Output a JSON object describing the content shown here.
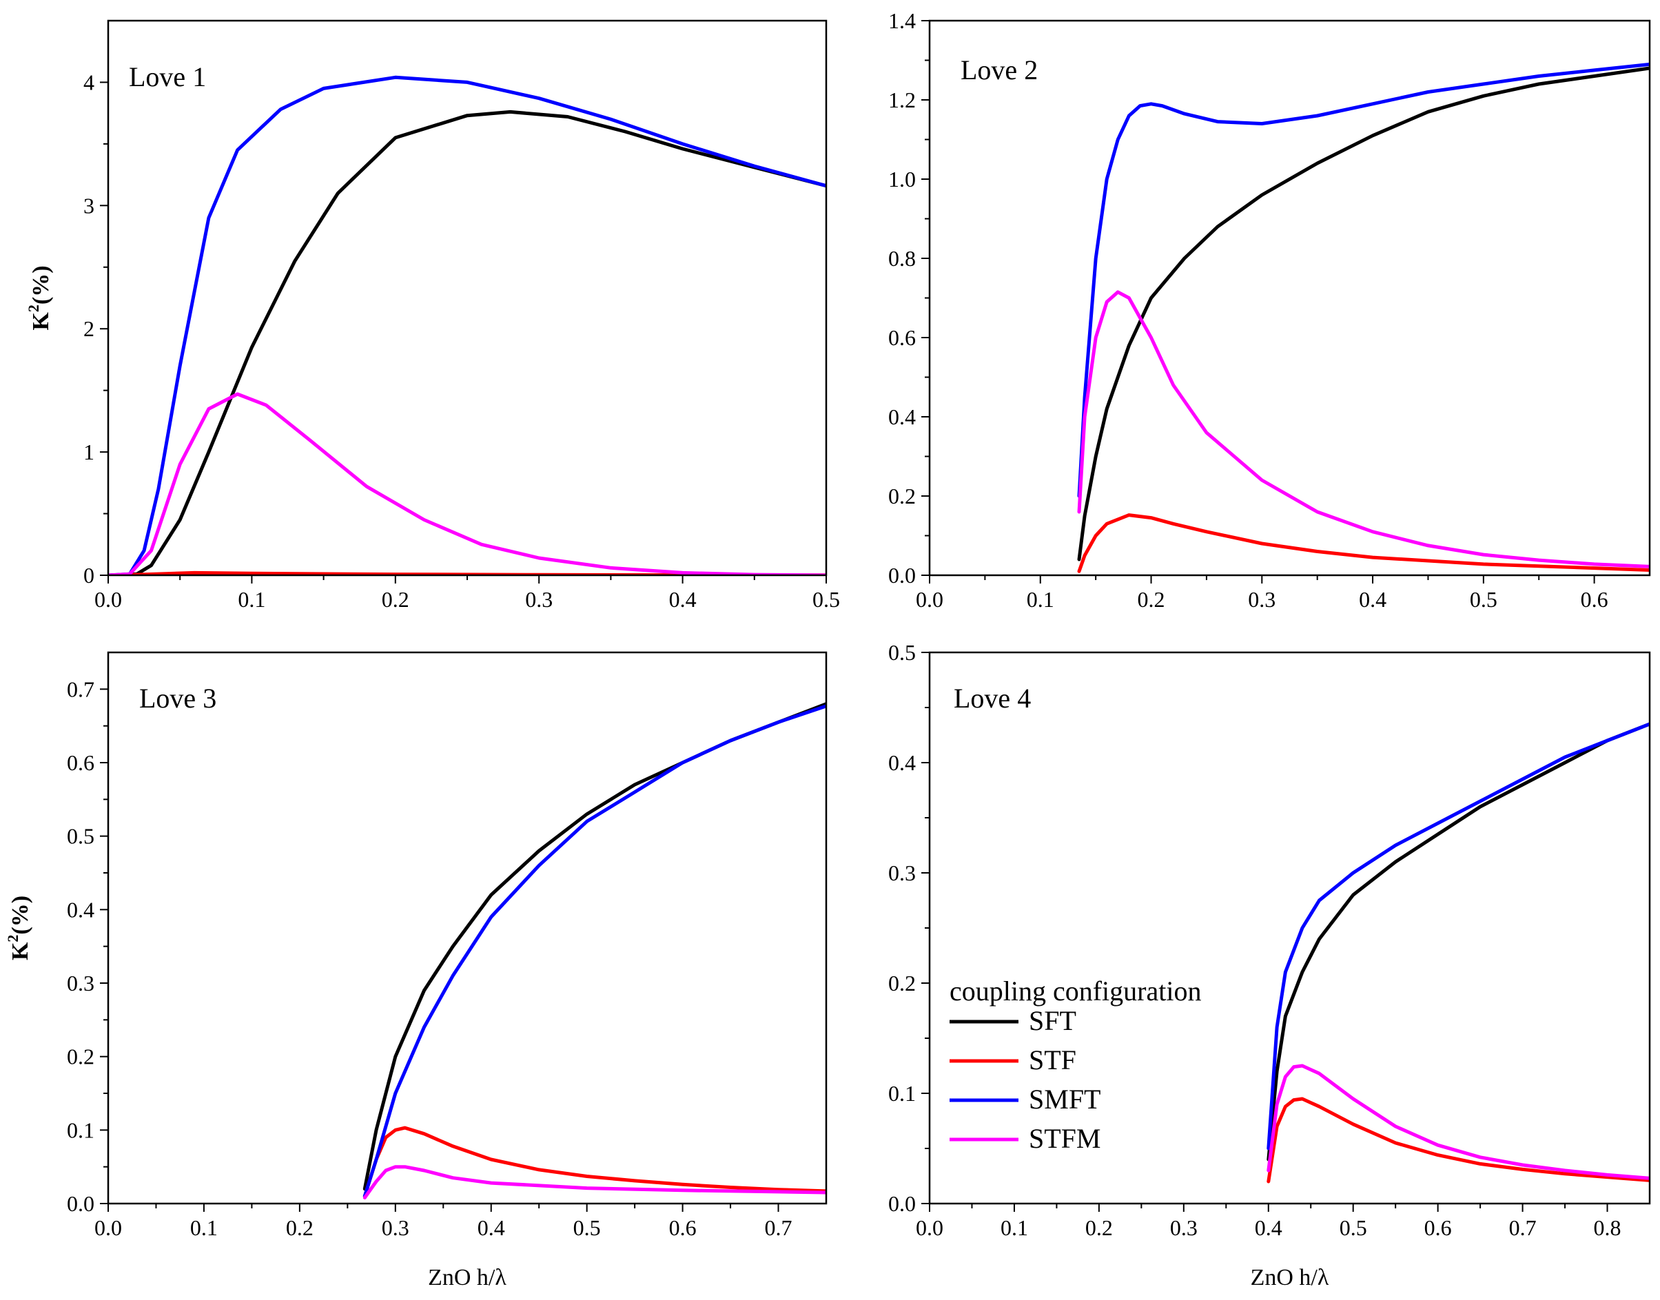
{
  "colors": {
    "SFT": "#000000",
    "STF": "#ff0000",
    "SMFT": "#0000ff",
    "STFM": "#ff00ff"
  },
  "legend": {
    "title": "coupling configuration",
    "entries": [
      {
        "name": "SFT",
        "color": "#000000"
      },
      {
        "name": "STF",
        "color": "#ff0000"
      },
      {
        "name": "SMFT",
        "color": "#0000ff"
      },
      {
        "name": "STFM",
        "color": "#ff00ff"
      }
    ]
  },
  "chart_data": [
    {
      "type": "line",
      "title": "Love 1",
      "xlabel": "",
      "ylabel_base": "K",
      "ylabel_sup": "2",
      "ylabel_rest": "(%)",
      "xlim": [
        0,
        0.5
      ],
      "ylim": [
        0,
        4.5
      ],
      "xticks": [
        "0.0",
        "0.1",
        "0.2",
        "0.3",
        "0.4",
        "0.5"
      ],
      "yticks": [
        "0",
        "1",
        "2",
        "3",
        "4"
      ],
      "series": [
        {
          "name": "SFT",
          "x": [
            0,
            0.02,
            0.03,
            0.05,
            0.07,
            0.1,
            0.13,
            0.16,
            0.2,
            0.25,
            0.28,
            0.32,
            0.36,
            0.4,
            0.45,
            0.5
          ],
          "y": [
            0,
            0.01,
            0.08,
            0.45,
            1.0,
            1.85,
            2.55,
            3.1,
            3.55,
            3.73,
            3.76,
            3.72,
            3.6,
            3.46,
            3.31,
            3.16
          ]
        },
        {
          "name": "STF",
          "x": [
            0,
            0.02,
            0.06,
            0.1,
            0.2,
            0.3,
            0.4,
            0.5
          ],
          "y": [
            0,
            0.005,
            0.02,
            0.015,
            0.008,
            0.004,
            0.002,
            0.001
          ]
        },
        {
          "name": "SMFT",
          "x": [
            0,
            0.015,
            0.025,
            0.035,
            0.05,
            0.07,
            0.09,
            0.12,
            0.15,
            0.2,
            0.25,
            0.3,
            0.35,
            0.4,
            0.45,
            0.5
          ],
          "y": [
            0,
            0.01,
            0.2,
            0.7,
            1.7,
            2.9,
            3.45,
            3.78,
            3.95,
            4.04,
            4.0,
            3.87,
            3.7,
            3.5,
            3.32,
            3.16
          ]
        },
        {
          "name": "STFM",
          "x": [
            0,
            0.015,
            0.03,
            0.05,
            0.07,
            0.09,
            0.11,
            0.14,
            0.18,
            0.22,
            0.26,
            0.3,
            0.35,
            0.4,
            0.45,
            0.5
          ],
          "y": [
            0,
            0.01,
            0.2,
            0.9,
            1.35,
            1.47,
            1.38,
            1.1,
            0.72,
            0.45,
            0.25,
            0.14,
            0.06,
            0.02,
            0.005,
            0
          ]
        }
      ]
    },
    {
      "type": "line",
      "title": "Love 2",
      "xlabel": "",
      "ylabel_base": "",
      "ylabel_sup": "",
      "ylabel_rest": "",
      "xlim": [
        0,
        0.65
      ],
      "ylim": [
        0,
        1.4
      ],
      "xticks": [
        "0.0",
        "0.1",
        "0.2",
        "0.3",
        "0.4",
        "0.5",
        "0.6"
      ],
      "yticks": [
        "0.0",
        "0.2",
        "0.4",
        "0.6",
        "0.8",
        "1.0",
        "1.2",
        "1.4"
      ],
      "series": [
        {
          "name": "SFT",
          "x": [
            0.135,
            0.14,
            0.15,
            0.16,
            0.18,
            0.2,
            0.23,
            0.26,
            0.3,
            0.35,
            0.4,
            0.45,
            0.5,
            0.55,
            0.6,
            0.65
          ],
          "y": [
            0.04,
            0.15,
            0.3,
            0.42,
            0.58,
            0.7,
            0.8,
            0.88,
            0.96,
            1.04,
            1.11,
            1.17,
            1.21,
            1.24,
            1.26,
            1.28
          ]
        },
        {
          "name": "STF",
          "x": [
            0.135,
            0.14,
            0.15,
            0.16,
            0.18,
            0.2,
            0.22,
            0.25,
            0.3,
            0.35,
            0.4,
            0.5,
            0.6,
            0.65
          ],
          "y": [
            0.01,
            0.05,
            0.1,
            0.13,
            0.152,
            0.145,
            0.13,
            0.11,
            0.08,
            0.06,
            0.045,
            0.028,
            0.018,
            0.013
          ]
        },
        {
          "name": "SMFT",
          "x": [
            0.135,
            0.14,
            0.15,
            0.16,
            0.17,
            0.18,
            0.19,
            0.2,
            0.21,
            0.23,
            0.26,
            0.3,
            0.35,
            0.4,
            0.45,
            0.5,
            0.55,
            0.6,
            0.65
          ],
          "y": [
            0.2,
            0.45,
            0.8,
            1.0,
            1.1,
            1.16,
            1.185,
            1.19,
            1.185,
            1.165,
            1.145,
            1.14,
            1.16,
            1.19,
            1.22,
            1.24,
            1.26,
            1.275,
            1.29
          ]
        },
        {
          "name": "STFM",
          "x": [
            0.135,
            0.14,
            0.15,
            0.16,
            0.17,
            0.18,
            0.2,
            0.22,
            0.25,
            0.3,
            0.35,
            0.4,
            0.45,
            0.5,
            0.55,
            0.6,
            0.65
          ],
          "y": [
            0.16,
            0.4,
            0.6,
            0.69,
            0.715,
            0.7,
            0.6,
            0.48,
            0.36,
            0.24,
            0.16,
            0.11,
            0.075,
            0.052,
            0.038,
            0.028,
            0.022
          ]
        }
      ]
    },
    {
      "type": "line",
      "title": "Love 3",
      "xlabel": "ZnO h/λ",
      "ylabel_base": "K",
      "ylabel_sup": "2",
      "ylabel_rest": "(%)",
      "xlim": [
        0,
        0.75
      ],
      "ylim": [
        0,
        0.75
      ],
      "xticks": [
        "0.0",
        "0.1",
        "0.2",
        "0.3",
        "0.4",
        "0.5",
        "0.6",
        "0.7"
      ],
      "yticks": [
        "0.0",
        "0.1",
        "0.2",
        "0.3",
        "0.4",
        "0.5",
        "0.6",
        "0.7"
      ],
      "series": [
        {
          "name": "SFT",
          "x": [
            0.268,
            0.28,
            0.3,
            0.33,
            0.36,
            0.4,
            0.45,
            0.5,
            0.55,
            0.6,
            0.65,
            0.7,
            0.75
          ],
          "y": [
            0.02,
            0.1,
            0.2,
            0.29,
            0.35,
            0.42,
            0.48,
            0.53,
            0.57,
            0.6,
            0.63,
            0.655,
            0.68
          ]
        },
        {
          "name": "STF",
          "x": [
            0.268,
            0.28,
            0.29,
            0.3,
            0.31,
            0.33,
            0.36,
            0.4,
            0.45,
            0.5,
            0.55,
            0.6,
            0.65,
            0.7,
            0.75
          ],
          "y": [
            0.01,
            0.06,
            0.09,
            0.1,
            0.103,
            0.095,
            0.078,
            0.06,
            0.046,
            0.037,
            0.031,
            0.026,
            0.022,
            0.019,
            0.017
          ]
        },
        {
          "name": "SMFT",
          "x": [
            0.268,
            0.28,
            0.3,
            0.33,
            0.36,
            0.4,
            0.45,
            0.5,
            0.55,
            0.6,
            0.65,
            0.7,
            0.75
          ],
          "y": [
            0.01,
            0.06,
            0.15,
            0.24,
            0.31,
            0.39,
            0.46,
            0.52,
            0.56,
            0.6,
            0.63,
            0.655,
            0.677
          ]
        },
        {
          "name": "STFM",
          "x": [
            0.268,
            0.28,
            0.29,
            0.3,
            0.31,
            0.33,
            0.36,
            0.4,
            0.5,
            0.6,
            0.7,
            0.75
          ],
          "y": [
            0.008,
            0.03,
            0.045,
            0.05,
            0.05,
            0.045,
            0.035,
            0.028,
            0.021,
            0.018,
            0.016,
            0.015
          ]
        }
      ]
    },
    {
      "type": "line",
      "title": "Love 4",
      "xlabel": "ZnO h/λ",
      "ylabel_base": "",
      "ylabel_sup": "",
      "ylabel_rest": "",
      "xlim": [
        0,
        0.85
      ],
      "ylim": [
        0,
        0.5
      ],
      "xticks": [
        "0.0",
        "0.1",
        "0.2",
        "0.3",
        "0.4",
        "0.5",
        "0.6",
        "0.7",
        "0.8"
      ],
      "yticks": [
        "0.0",
        "0.1",
        "0.2",
        "0.3",
        "0.4",
        "0.5"
      ],
      "series": [
        {
          "name": "SFT",
          "x": [
            0.4,
            0.41,
            0.42,
            0.44,
            0.46,
            0.5,
            0.55,
            0.6,
            0.65,
            0.7,
            0.75,
            0.8,
            0.85
          ],
          "y": [
            0.04,
            0.12,
            0.17,
            0.21,
            0.24,
            0.28,
            0.31,
            0.335,
            0.36,
            0.38,
            0.4,
            0.42,
            0.435
          ]
        },
        {
          "name": "STF",
          "x": [
            0.4,
            0.41,
            0.42,
            0.43,
            0.44,
            0.46,
            0.5,
            0.55,
            0.6,
            0.65,
            0.7,
            0.75,
            0.8,
            0.85
          ],
          "y": [
            0.02,
            0.07,
            0.088,
            0.094,
            0.095,
            0.088,
            0.072,
            0.055,
            0.044,
            0.036,
            0.031,
            0.027,
            0.024,
            0.021
          ]
        },
        {
          "name": "SMFT",
          "x": [
            0.4,
            0.41,
            0.42,
            0.44,
            0.46,
            0.5,
            0.55,
            0.6,
            0.65,
            0.7,
            0.75,
            0.8,
            0.85
          ],
          "y": [
            0.05,
            0.16,
            0.21,
            0.25,
            0.275,
            0.3,
            0.325,
            0.345,
            0.365,
            0.385,
            0.405,
            0.42,
            0.435
          ]
        },
        {
          "name": "STFM",
          "x": [
            0.4,
            0.41,
            0.42,
            0.43,
            0.44,
            0.46,
            0.5,
            0.55,
            0.6,
            0.65,
            0.7,
            0.75,
            0.8,
            0.85
          ],
          "y": [
            0.03,
            0.09,
            0.115,
            0.124,
            0.125,
            0.118,
            0.095,
            0.07,
            0.053,
            0.042,
            0.035,
            0.03,
            0.026,
            0.023
          ]
        }
      ]
    }
  ]
}
